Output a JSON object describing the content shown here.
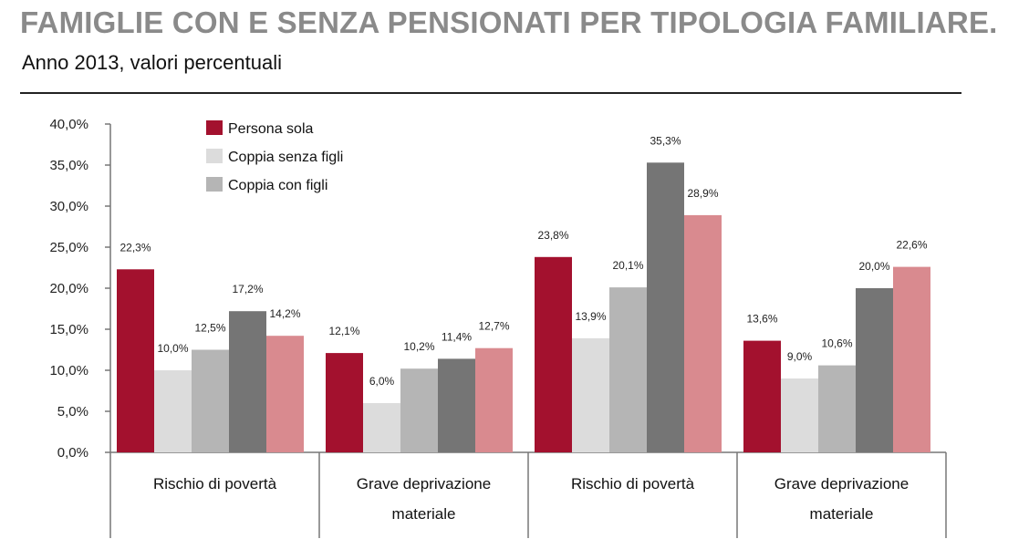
{
  "header": {
    "title": "FAMIGLIE CON E SENZA PENSIONATI PER TIPOLOGIA FAMILIARE.",
    "subtitle": "Anno 2013, valori percentuali"
  },
  "chart_data": {
    "type": "bar",
    "ylim": [
      0,
      40
    ],
    "y_ticks": [
      "0,0%",
      "5,0%",
      "10,0%",
      "15,0%",
      "20,0%",
      "25,0%",
      "30,0%",
      "35,0%",
      "40,0%"
    ],
    "y_tick_values": [
      0,
      5,
      10,
      15,
      20,
      25,
      30,
      35,
      40
    ],
    "grid": false,
    "legend_position": "top-left",
    "categories": [
      [
        "Rischio di povertà"
      ],
      [
        "Grave deprivazione",
        "materiale"
      ],
      [
        "Rischio di povertà"
      ],
      [
        "Grave deprivazione",
        "materiale"
      ]
    ],
    "series": [
      {
        "name": "Persona sola",
        "color": "#a3112e",
        "in_legend": true,
        "values": [
          22.3,
          12.1,
          23.8,
          13.6
        ],
        "labels": [
          "22,3%",
          "12,1%",
          "23,8%",
          "13,6%"
        ]
      },
      {
        "name": "Coppia senza figli",
        "color": "#dcdcdc",
        "in_legend": true,
        "values": [
          10.0,
          6.0,
          13.9,
          9.0
        ],
        "labels": [
          "10,0%",
          "6,0%",
          "13,9%",
          "9,0%"
        ]
      },
      {
        "name": "Coppia con figli",
        "color": "#b5b5b5",
        "in_legend": true,
        "values": [
          12.5,
          10.2,
          20.1,
          10.6
        ],
        "labels": [
          "12,5%",
          "10,2%",
          "20,1%",
          "10,6%"
        ]
      },
      {
        "name": "",
        "color": "#757575",
        "in_legend": false,
        "values": [
          17.2,
          11.4,
          35.3,
          20.0
        ],
        "labels": [
          "17,2%",
          "11,4%",
          "35,3%",
          "20,0%"
        ]
      },
      {
        "name": "",
        "color": "#d98a8f",
        "in_legend": false,
        "values": [
          14.2,
          12.7,
          28.9,
          22.6
        ],
        "labels": [
          "14,2%",
          "12,7%",
          "28,9%",
          "22,6%"
        ]
      }
    ]
  }
}
